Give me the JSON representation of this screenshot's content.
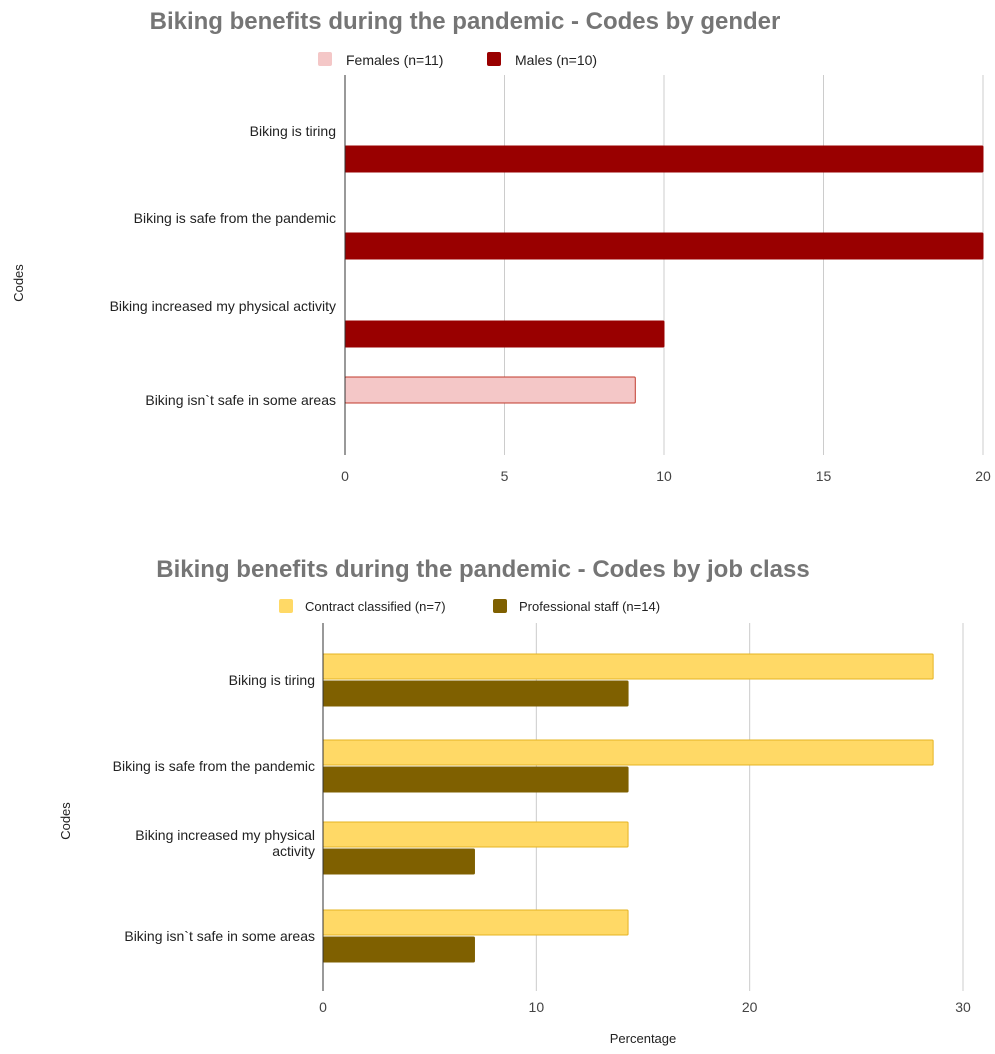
{
  "chart_data": [
    {
      "type": "bar",
      "orientation": "horizontal",
      "title": "Biking benefits during the pandemic - Codes by gender",
      "ylabel": "Codes",
      "xlabel": "",
      "categories": [
        "Biking is tiring",
        "Biking is safe from the pandemic",
        "Biking increased my physical activity",
        "Biking isn`t safe in some areas"
      ],
      "series": [
        {
          "name": "Females (n=11)",
          "color": "#f4c7c7",
          "border": "#c0392b",
          "values": [
            0,
            0,
            0,
            9.1
          ]
        },
        {
          "name": "Males (n=10)",
          "color": "#990000",
          "border": "#990000",
          "values": [
            20,
            20,
            10,
            0
          ]
        }
      ],
      "xlim": [
        0,
        20
      ],
      "ticks": [
        "0",
        "5",
        "10",
        "15",
        "20"
      ],
      "legend": "top",
      "grid": true
    },
    {
      "type": "bar",
      "orientation": "horizontal",
      "title": "Biking benefits during the pandemic - Codes by job class",
      "ylabel": "Codes",
      "xlabel": "Percentage",
      "categories": [
        "Biking is tiring",
        "Biking is safe from the pandemic",
        "Biking increased my physical activity",
        "Biking isn`t safe in some areas"
      ],
      "series": [
        {
          "name": "Contract classified (n=7)",
          "color": "#ffd966",
          "border": "#e6b422",
          "values": [
            28.6,
            28.6,
            14.3,
            14.3
          ]
        },
        {
          "name": "Professional staff (n=14)",
          "color": "#7f6000",
          "border": "#7f6000",
          "values": [
            14.3,
            14.3,
            7.1,
            7.1
          ]
        }
      ],
      "xlim": [
        0,
        30
      ],
      "ticks": [
        "0",
        "10",
        "20",
        "30"
      ],
      "legend": "top",
      "grid": true
    }
  ]
}
